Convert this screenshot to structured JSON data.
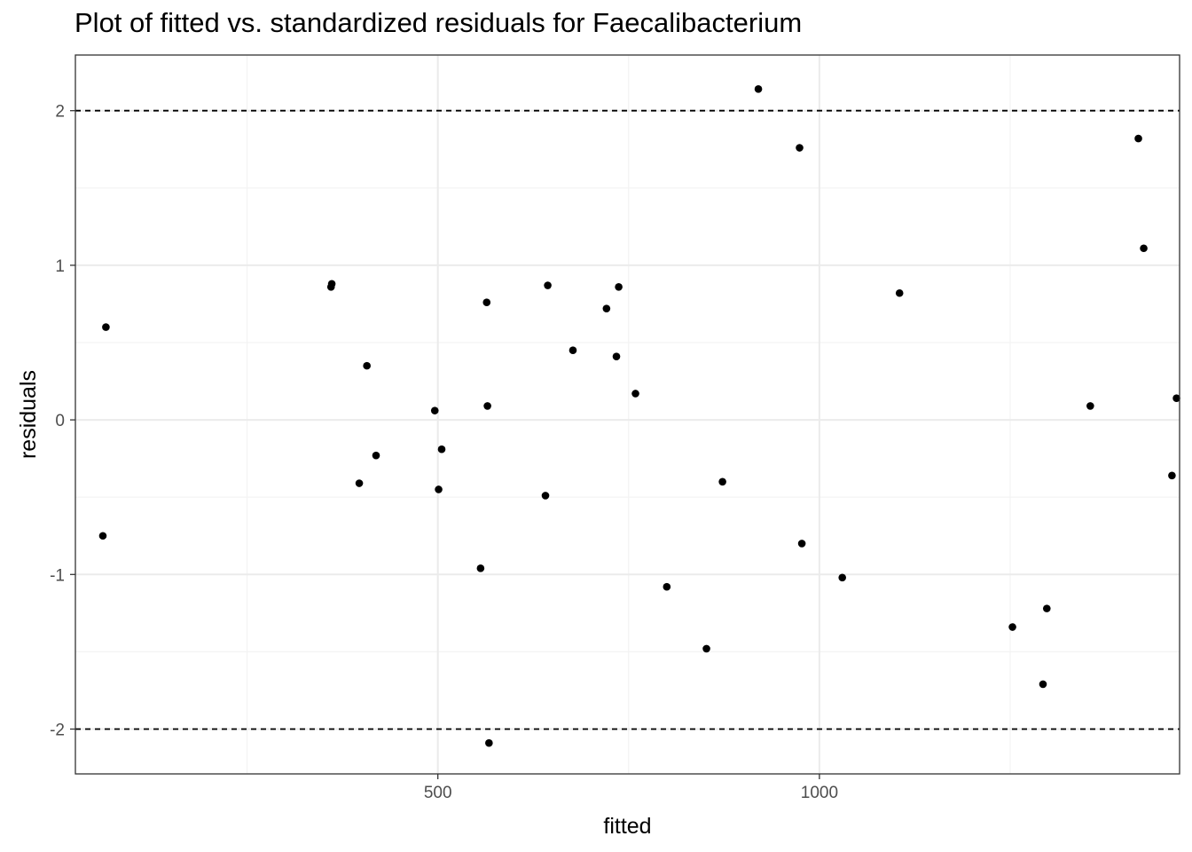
{
  "chart_data": {
    "type": "scatter",
    "title": "Plot of fitted vs. standardized residuals for Faecalibacterium",
    "xlabel": "fitted",
    "ylabel": "residuals",
    "xlim": [
      25,
      1472
    ],
    "ylim": [
      -2.29,
      2.36
    ],
    "x_ticks": [
      500,
      1000
    ],
    "x_tick_labels": [
      "500",
      "1000"
    ],
    "y_ticks": [
      -2,
      -1,
      0,
      1,
      2
    ],
    "y_tick_labels": [
      "-2",
      "-1",
      "0",
      "1",
      "2"
    ],
    "grid": true,
    "reference_lines": [
      -2,
      2
    ],
    "points": [
      {
        "x": 65,
        "y": 0.6
      },
      {
        "x": 61,
        "y": -0.75
      },
      {
        "x": 361,
        "y": 0.88
      },
      {
        "x": 360,
        "y": 0.86
      },
      {
        "x": 407,
        "y": 0.35
      },
      {
        "x": 397,
        "y": -0.41
      },
      {
        "x": 419,
        "y": -0.23
      },
      {
        "x": 496,
        "y": 0.06
      },
      {
        "x": 505,
        "y": -0.19
      },
      {
        "x": 501,
        "y": -0.45
      },
      {
        "x": 564,
        "y": 0.76
      },
      {
        "x": 565,
        "y": 0.09
      },
      {
        "x": 556,
        "y": -0.96
      },
      {
        "x": 567,
        "y": -2.09
      },
      {
        "x": 644,
        "y": 0.87
      },
      {
        "x": 641,
        "y": -0.49
      },
      {
        "x": 677,
        "y": 0.45
      },
      {
        "x": 721,
        "y": 0.72
      },
      {
        "x": 737,
        "y": 0.86
      },
      {
        "x": 734,
        "y": 0.41
      },
      {
        "x": 759,
        "y": 0.17
      },
      {
        "x": 800,
        "y": -1.08
      },
      {
        "x": 852,
        "y": -1.48
      },
      {
        "x": 873,
        "y": -0.4
      },
      {
        "x": 920,
        "y": 2.14
      },
      {
        "x": 974,
        "y": 1.76
      },
      {
        "x": 977,
        "y": -0.8
      },
      {
        "x": 1030,
        "y": -1.02
      },
      {
        "x": 1105,
        "y": 0.82
      },
      {
        "x": 1253,
        "y": -1.34
      },
      {
        "x": 1293,
        "y": -1.71
      },
      {
        "x": 1298,
        "y": -1.22
      },
      {
        "x": 1355,
        "y": 0.09
      },
      {
        "x": 1418,
        "y": 1.82
      },
      {
        "x": 1425,
        "y": 1.11
      },
      {
        "x": 1462,
        "y": -0.36
      },
      {
        "x": 1468,
        "y": 0.14
      }
    ]
  }
}
